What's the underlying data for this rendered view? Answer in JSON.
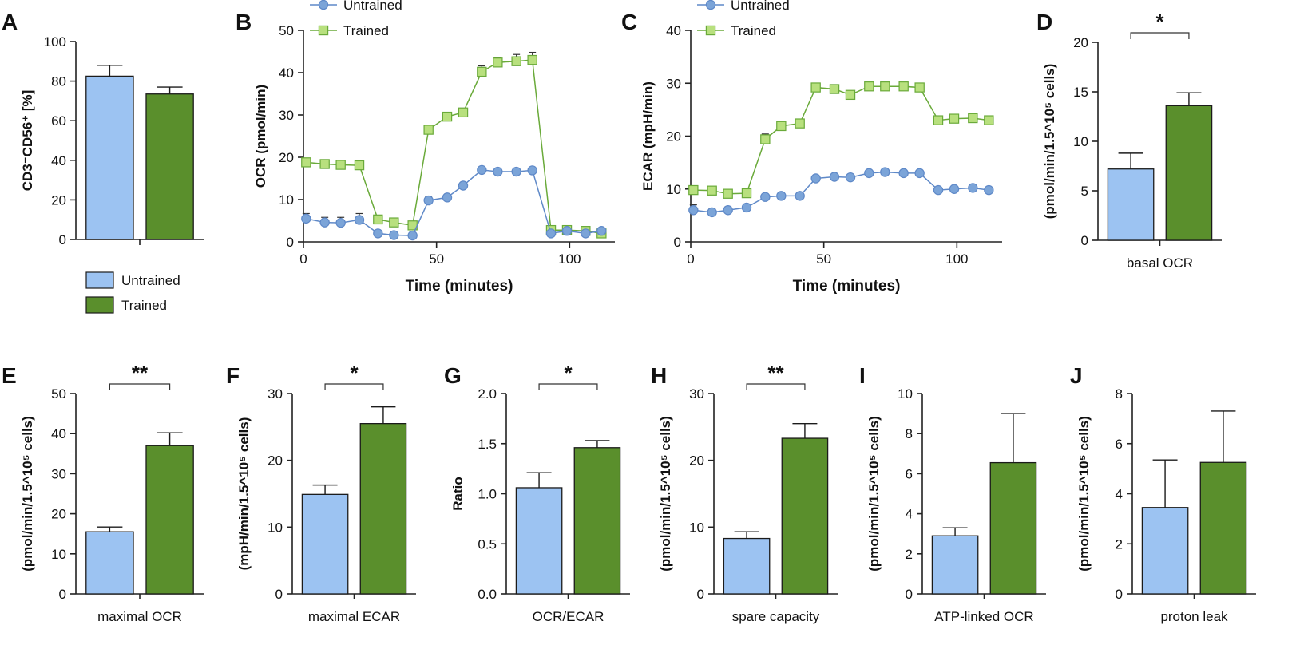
{
  "colors": {
    "untrained": "#9cc3f2",
    "trained": "#5a8f2c",
    "untrained_marker": "#7ba4d8",
    "untrained_line": "#5f89c8",
    "trained_marker": "#b8e07e",
    "trained_line": "#6aaa3a",
    "axis": "#222222"
  },
  "legend": {
    "untrained": "Untrained",
    "trained": "Trained"
  },
  "chart_data": [
    {
      "panel": "A",
      "type": "bar",
      "ylabel": "CD3⁻CD56⁺ [%]",
      "xlabel": "",
      "ylim": [
        0,
        100
      ],
      "yticks": [
        0,
        20,
        40,
        60,
        80,
        100
      ],
      "series": [
        {
          "name": "Untrained",
          "value": 82.5,
          "error": 5.5
        },
        {
          "name": "Trained",
          "value": 73.5,
          "error": 3.5
        }
      ],
      "significance": ""
    },
    {
      "panel": "B",
      "type": "line",
      "ylabel": "OCR (pmol/min)",
      "xlabel": "Time (minutes)",
      "xlim": [
        0,
        117
      ],
      "ylim": [
        0,
        50
      ],
      "xticks": [
        0,
        50,
        100
      ],
      "yticks": [
        0,
        10,
        20,
        30,
        40,
        50
      ],
      "x": [
        1,
        8,
        14,
        21,
        28,
        34,
        41,
        47,
        54,
        60,
        67,
        73,
        80,
        86,
        93,
        99,
        106,
        112
      ],
      "series": [
        {
          "name": "Untrained",
          "marker": "circle",
          "values": [
            5.5,
            4.6,
            4.5,
            5.2,
            2.0,
            1.6,
            1.5,
            9.8,
            10.5,
            13.3,
            17.0,
            16.6,
            16.6,
            16.9,
            2.0,
            2.6,
            2.0,
            2.6
          ],
          "errors": [
            1.2,
            1.2,
            1.3,
            1.5,
            0.6,
            0.4,
            0.4,
            1.0,
            0.6,
            0.6,
            0.4,
            0.4,
            0.4,
            0.4,
            0.4,
            0.4,
            0.4,
            0.4
          ]
        },
        {
          "name": "Trained",
          "marker": "square",
          "values": [
            18.8,
            18.4,
            18.2,
            18.1,
            5.3,
            4.6,
            3.9,
            26.5,
            29.6,
            30.6,
            40.2,
            42.4,
            42.7,
            43.0,
            2.8,
            2.8,
            2.6,
            2.0
          ],
          "errors": [
            0.4,
            0.4,
            0.4,
            0.4,
            0.6,
            0.4,
            0.4,
            0.8,
            1.0,
            1.0,
            1.4,
            1.2,
            1.6,
            1.8,
            0.4,
            0.4,
            0.4,
            0.4
          ]
        }
      ]
    },
    {
      "panel": "C",
      "type": "line",
      "ylabel": "ECAR (mpH/min)",
      "xlabel": "Time (minutes)",
      "xlim": [
        0,
        117
      ],
      "ylim": [
        0,
        40
      ],
      "xticks": [
        0,
        50,
        100
      ],
      "yticks": [
        0,
        10,
        20,
        30,
        40
      ],
      "x": [
        1,
        8,
        14,
        21,
        28,
        34,
        41,
        47,
        54,
        60,
        67,
        73,
        80,
        86,
        93,
        99,
        106,
        112
      ],
      "series": [
        {
          "name": "Untrained",
          "marker": "circle",
          "values": [
            6.0,
            5.6,
            6.0,
            6.5,
            8.5,
            8.7,
            8.7,
            12.0,
            12.3,
            12.2,
            13.0,
            13.2,
            13.0,
            13.0,
            9.8,
            10.0,
            10.2,
            9.8
          ],
          "errors": [
            1.0,
            0.6,
            0.6,
            0.6,
            0.4,
            0.4,
            0.4,
            0.4,
            0.4,
            0.4,
            0.4,
            0.4,
            0.4,
            0.4,
            0.4,
            0.4,
            0.4,
            0.4
          ]
        },
        {
          "name": "Trained",
          "marker": "square",
          "values": [
            9.8,
            9.7,
            9.1,
            9.2,
            19.4,
            21.9,
            22.4,
            29.2,
            28.9,
            27.8,
            29.4,
            29.4,
            29.4,
            29.2,
            23.0,
            23.3,
            23.4,
            23.0
          ],
          "errors": [
            0.4,
            0.4,
            0.4,
            0.4,
            1.0,
            0.4,
            0.4,
            0.4,
            0.4,
            0.4,
            0.4,
            0.4,
            0.4,
            0.4,
            0.4,
            0.4,
            0.4,
            0.4
          ]
        }
      ]
    },
    {
      "panel": "D",
      "type": "bar",
      "ylabel": "(pmol/min/1.5^10⁵ cells)",
      "xlabel": "basal OCR",
      "ylim": [
        0,
        20
      ],
      "yticks": [
        0,
        5,
        10,
        15,
        20
      ],
      "series": [
        {
          "name": "Untrained",
          "value": 7.2,
          "error": 1.6
        },
        {
          "name": "Trained",
          "value": 13.6,
          "error": 1.3
        }
      ],
      "significance": "*"
    },
    {
      "panel": "E",
      "type": "bar",
      "ylabel": "(pmol/min/1.5^10⁵ cells)",
      "xlabel": "maximal OCR",
      "ylim": [
        0,
        50
      ],
      "yticks": [
        0,
        10,
        20,
        30,
        40,
        50
      ],
      "series": [
        {
          "name": "Untrained",
          "value": 15.5,
          "error": 1.2
        },
        {
          "name": "Trained",
          "value": 37.0,
          "error": 3.2
        }
      ],
      "significance": "**"
    },
    {
      "panel": "F",
      "type": "bar",
      "ylabel": "(mpH/min/1.5^10⁵ cells)",
      "xlabel": "maximal ECAR",
      "ylim": [
        0,
        30
      ],
      "yticks": [
        0,
        10,
        20,
        30
      ],
      "series": [
        {
          "name": "Untrained",
          "value": 14.9,
          "error": 1.4
        },
        {
          "name": "Trained",
          "value": 25.5,
          "error": 2.5
        }
      ],
      "significance": "*"
    },
    {
      "panel": "G",
      "type": "bar",
      "ylabel": "Ratio",
      "xlabel": "OCR/ECAR",
      "ylim": [
        0,
        2.0
      ],
      "yticks": [
        0.0,
        0.5,
        1.0,
        1.5,
        2.0
      ],
      "tickdecimals": 1,
      "series": [
        {
          "name": "Untrained",
          "value": 1.06,
          "error": 0.15
        },
        {
          "name": "Trained",
          "value": 1.46,
          "error": 0.07
        }
      ],
      "significance": "*"
    },
    {
      "panel": "H",
      "type": "bar",
      "ylabel": "(pmol/min/1.5^10⁵ cells)",
      "xlabel": "spare capacity",
      "ylim": [
        0,
        30
      ],
      "yticks": [
        0,
        10,
        20,
        30
      ],
      "series": [
        {
          "name": "Untrained",
          "value": 8.3,
          "error": 1.0
        },
        {
          "name": "Trained",
          "value": 23.3,
          "error": 2.2
        }
      ],
      "significance": "**"
    },
    {
      "panel": "I",
      "type": "bar",
      "ylabel": "(pmol/min/1.5^10⁵ cells)",
      "xlabel": "ATP-linked OCR",
      "ylim": [
        0,
        10
      ],
      "yticks": [
        0,
        2,
        4,
        6,
        8,
        10
      ],
      "series": [
        {
          "name": "Untrained",
          "value": 2.9,
          "error": 0.4
        },
        {
          "name": "Trained",
          "value": 6.55,
          "error": 2.45
        }
      ],
      "significance": ""
    },
    {
      "panel": "J",
      "type": "bar",
      "ylabel": "(pmol/min/1.5^10⁵ cells)",
      "xlabel": "proton leak",
      "ylim": [
        0,
        8
      ],
      "yticks": [
        0,
        2,
        4,
        6,
        8
      ],
      "series": [
        {
          "name": "Untrained",
          "value": 3.45,
          "error": 1.9
        },
        {
          "name": "Trained",
          "value": 5.25,
          "error": 2.05
        }
      ],
      "significance": ""
    }
  ]
}
